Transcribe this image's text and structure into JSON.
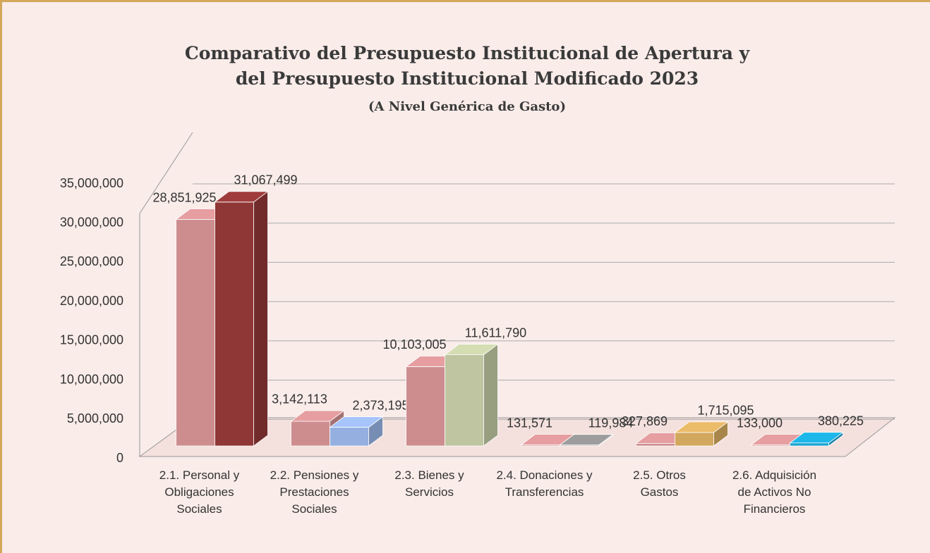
{
  "chart_data": {
    "type": "bar3d",
    "title": "Comparativo del Presupuesto Institucional de Apertura y\ndel Presupuesto Institucional Modificado 2023",
    "subtitle": "(A Nivel Genérica de Gasto)",
    "categories": [
      "2.1. Personal y\nObligaciones\nSociales",
      "2.2. Pensiones y\nPrestaciones\nSociales",
      "2.3. Bienes y\nServicios",
      "2.4. Donaciones y\nTransferencias",
      "2.5. Otros\nGastos",
      "2.6. Adquisición\nde Activos No\nFinancieros"
    ],
    "series": [
      {
        "color": "#cd8d8f",
        "values": [
          28851925,
          3142113,
          10103005,
          131571,
          327869,
          133000
        ],
        "value_labels": [
          "28,851,925",
          "3,142,113",
          "10,103,005",
          "131,571",
          "327,869",
          "133,000"
        ]
      },
      {
        "colors": [
          "#8f3636",
          "#95b0e0",
          "#bec5a0",
          "#8c8c8c",
          "#d2a85e",
          "#1aa3d1"
        ],
        "values": [
          31067499,
          2373195,
          11611790,
          119984,
          1715095,
          380225
        ],
        "value_labels": [
          "31,067,499",
          "2,373,195",
          "11,611,790",
          "119,984",
          "1,715,095",
          "380,225"
        ]
      }
    ],
    "ylim": [
      0,
      35000000
    ],
    "yticks": [
      0,
      {
        "value": 5000000,
        "label": "5,000,000"
      },
      {
        "value": 10000000,
        "label": "10,000,000"
      },
      {
        "value": 15000000,
        "label": "15,000,000"
      },
      {
        "value": 20000000,
        "label": "20,000,000"
      },
      {
        "value": 25000000,
        "label": "25,000,000"
      },
      {
        "value": 30000000,
        "label": "30,000,000"
      },
      {
        "value": 35000000,
        "label": "35,000,000"
      }
    ],
    "grid": true
  }
}
